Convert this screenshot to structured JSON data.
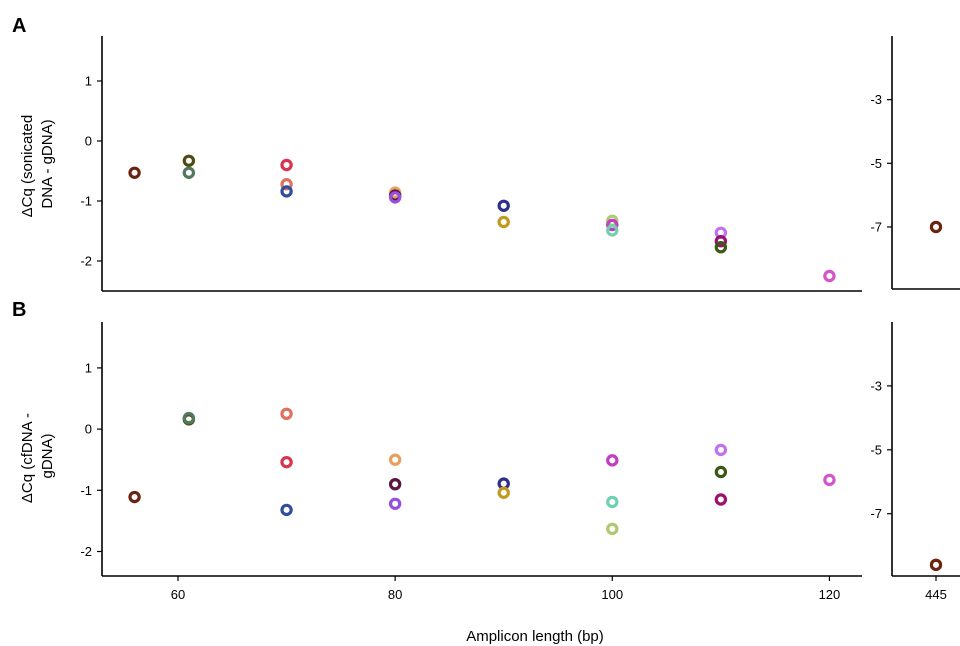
{
  "colors": {
    "56": "#6b2410",
    "61a": "#4e4a12",
    "61b": "#4f7a5e",
    "70a": "#d8334f",
    "70b": "#e07060",
    "70c": "#2f4f9e",
    "80a": "#e8a060",
    "80b": "#5a1545",
    "80c": "#9650e0",
    "90a": "#2e2f8a",
    "90b": "#c09a20",
    "100a": "#b0c870",
    "100b": "#70d0b0",
    "100c": "#c33cc3",
    "110a": "#c070f0",
    "110b": "#9b1070",
    "110c": "#3d5715",
    "120": "#d455c8"
  },
  "chart_data": [
    {
      "panel": "A",
      "type": "scatter",
      "xlabel": "Amplicon length (bp)",
      "ylabel": "ΔCq (sonicated DNA - gDNA)",
      "xlim": [
        53,
        123
      ],
      "ylim": [
        -2.5,
        1.75
      ],
      "xticks": [
        60,
        80,
        100,
        120
      ],
      "yticks": [
        1,
        0,
        -1,
        -2
      ],
      "points": [
        {
          "x": 56,
          "y": -0.53,
          "color": "#6b2410"
        },
        {
          "x": 61,
          "y": -0.33,
          "color": "#4e4a12"
        },
        {
          "x": 61,
          "y": -0.53,
          "color": "#4f7a5e"
        },
        {
          "x": 70,
          "y": -0.4,
          "color": "#d8334f"
        },
        {
          "x": 70,
          "y": -0.72,
          "color": "#e07060"
        },
        {
          "x": 70,
          "y": -0.84,
          "color": "#2f4f9e"
        },
        {
          "x": 80,
          "y": -0.86,
          "color": "#e8a060"
        },
        {
          "x": 80,
          "y": -0.91,
          "color": "#5a1545"
        },
        {
          "x": 80,
          "y": -0.94,
          "color": "#9650e0"
        },
        {
          "x": 90,
          "y": -1.08,
          "color": "#2e2f8a"
        },
        {
          "x": 90,
          "y": -1.35,
          "color": "#c09a20"
        },
        {
          "x": 100,
          "y": -1.33,
          "color": "#b0c870"
        },
        {
          "x": 100,
          "y": -1.4,
          "color": "#c33cc3"
        },
        {
          "x": 100,
          "y": -1.49,
          "color": "#70d0b0"
        },
        {
          "x": 110,
          "y": -1.53,
          "color": "#c070f0"
        },
        {
          "x": 110,
          "y": -1.67,
          "color": "#9b1070"
        },
        {
          "x": 110,
          "y": -1.77,
          "color": "#3d5715"
        },
        {
          "x": 120,
          "y": -2.25,
          "color": "#d455c8"
        }
      ],
      "inset": {
        "xlim": [
          440,
          450
        ],
        "ylim": [
          -8.95,
          -1.0
        ],
        "yticks": [
          -3,
          -5,
          -7
        ],
        "points": [
          {
            "x": 445,
            "y": -7.0,
            "color": "#6b2410"
          }
        ]
      }
    },
    {
      "panel": "B",
      "type": "scatter",
      "xlabel": "Amplicon length (bp)",
      "ylabel": "ΔCq (cfDNA - gDNA)",
      "xlim": [
        53,
        123
      ],
      "ylim": [
        -2.4,
        1.75
      ],
      "xticks": [
        60,
        80,
        100,
        120
      ],
      "yticks": [
        1,
        0,
        -1,
        -2
      ],
      "points": [
        {
          "x": 56,
          "y": -1.11,
          "color": "#6b2410"
        },
        {
          "x": 61,
          "y": 0.16,
          "color": "#4e4a12"
        },
        {
          "x": 61,
          "y": 0.18,
          "color": "#4f7a5e"
        },
        {
          "x": 70,
          "y": 0.25,
          "color": "#e07060"
        },
        {
          "x": 70,
          "y": -0.54,
          "color": "#d8334f"
        },
        {
          "x": 70,
          "y": -1.32,
          "color": "#2f4f9e"
        },
        {
          "x": 80,
          "y": -0.5,
          "color": "#e8a060"
        },
        {
          "x": 80,
          "y": -0.9,
          "color": "#5a1545"
        },
        {
          "x": 80,
          "y": -1.22,
          "color": "#9650e0"
        },
        {
          "x": 90,
          "y": -0.89,
          "color": "#2e2f8a"
        },
        {
          "x": 90,
          "y": -1.04,
          "color": "#c09a20"
        },
        {
          "x": 100,
          "y": -0.51,
          "color": "#c33cc3"
        },
        {
          "x": 100,
          "y": -1.19,
          "color": "#70d0b0"
        },
        {
          "x": 100,
          "y": -1.63,
          "color": "#b0c870"
        },
        {
          "x": 110,
          "y": -0.34,
          "color": "#c070f0"
        },
        {
          "x": 110,
          "y": -0.7,
          "color": "#3d5715"
        },
        {
          "x": 110,
          "y": -1.15,
          "color": "#9b1070"
        },
        {
          "x": 120,
          "y": -0.83,
          "color": "#d455c8"
        }
      ],
      "inset": {
        "xlim": [
          440,
          450
        ],
        "ylim": [
          -8.95,
          -1.0
        ],
        "xticks": [
          445
        ],
        "yticks": [
          -3,
          -5,
          -7
        ],
        "points": [
          {
            "x": 445,
            "y": -8.6,
            "color": "#6b2410"
          }
        ]
      }
    }
  ]
}
